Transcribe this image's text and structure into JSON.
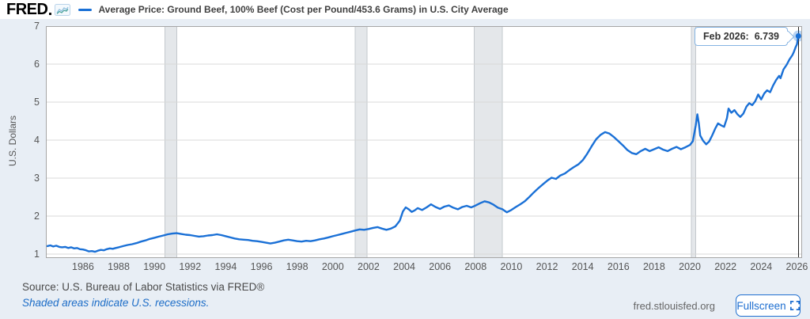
{
  "header": {
    "logo_text": "FRED",
    "series_title": "Average Price: Ground Beef, 100% Beef (Cost per Pound/453.6 Grams) in U.S. City Average"
  },
  "tooltip": {
    "label": "Feb 2026:",
    "value": "6.739"
  },
  "footer": {
    "source": "Source: U.S. Bureau of Labor Statistics via FRED®",
    "recession_note": "Shaded areas indicate U.S. recessions.",
    "site": "fred.stlouisfed.org",
    "fullscreen_label": "Fullscreen"
  },
  "colors": {
    "background": "#e8eef5",
    "line": "#1a70d6",
    "grid": "#d8d8d8",
    "plot_border": "#a6a6a6",
    "plot_bg": "#ffffff",
    "recession": "#e4e7ea",
    "recession_edge": "#c3c8cd",
    "crosshair": "#222222",
    "tooltip_border": "#85b3e2",
    "link": "#1b6cc7",
    "button": "#1f6fd0"
  },
  "chart_data": {
    "type": "line",
    "title": "Average Price: Ground Beef, 100% Beef (Cost per Pound/453.6 Grams) in U.S. City Average",
    "xlabel": "",
    "ylabel": "U.S. Dollars",
    "x_range": [
      1983.92,
      2026.29
    ],
    "y_range": [
      0.896,
      7.0
    ],
    "y_ticks": [
      1,
      2,
      3,
      4,
      5,
      6,
      7
    ],
    "x_ticks": [
      1986,
      1988,
      1990,
      1992,
      1994,
      1996,
      1998,
      2000,
      2002,
      2004,
      2006,
      2008,
      2010,
      2012,
      2014,
      2016,
      2018,
      2020,
      2022,
      2024,
      2026
    ],
    "grid": "horizontal",
    "legend_position": "top",
    "recessions": [
      [
        1990.58,
        1991.25
      ],
      [
        2001.25,
        2001.92
      ],
      [
        2007.92,
        2009.5
      ],
      [
        2020.08,
        2020.33
      ]
    ],
    "last_point": {
      "x": 2026.083,
      "y": 6.739,
      "label": "Feb 2026"
    },
    "series": [
      {
        "name": "Average Price: Ground Beef, 100% Beef (Cost per Pound/453.6 Grams) in U.S. City Average",
        "units": "U.S. Dollars",
        "points": [
          [
            1984.0,
            1.21
          ],
          [
            1984.17,
            1.23
          ],
          [
            1984.33,
            1.2
          ],
          [
            1984.5,
            1.22
          ],
          [
            1984.67,
            1.19
          ],
          [
            1984.83,
            1.18
          ],
          [
            1985.0,
            1.19
          ],
          [
            1985.17,
            1.16
          ],
          [
            1985.33,
            1.18
          ],
          [
            1985.5,
            1.15
          ],
          [
            1985.67,
            1.16
          ],
          [
            1985.83,
            1.13
          ],
          [
            1986.0,
            1.12
          ],
          [
            1986.17,
            1.1
          ],
          [
            1986.33,
            1.07
          ],
          [
            1986.5,
            1.08
          ],
          [
            1986.67,
            1.06
          ],
          [
            1986.83,
            1.09
          ],
          [
            1987.0,
            1.11
          ],
          [
            1987.17,
            1.1
          ],
          [
            1987.33,
            1.13
          ],
          [
            1987.5,
            1.15
          ],
          [
            1987.67,
            1.14
          ],
          [
            1987.83,
            1.16
          ],
          [
            1988.0,
            1.18
          ],
          [
            1988.25,
            1.21
          ],
          [
            1988.5,
            1.24
          ],
          [
            1988.75,
            1.26
          ],
          [
            1989.0,
            1.29
          ],
          [
            1989.25,
            1.33
          ],
          [
            1989.5,
            1.36
          ],
          [
            1989.75,
            1.4
          ],
          [
            1990.0,
            1.43
          ],
          [
            1990.25,
            1.46
          ],
          [
            1990.5,
            1.49
          ],
          [
            1990.75,
            1.52
          ],
          [
            1991.0,
            1.54
          ],
          [
            1991.25,
            1.55
          ],
          [
            1991.5,
            1.53
          ],
          [
            1991.75,
            1.51
          ],
          [
            1992.0,
            1.5
          ],
          [
            1992.25,
            1.48
          ],
          [
            1992.5,
            1.46
          ],
          [
            1992.75,
            1.47
          ],
          [
            1993.0,
            1.49
          ],
          [
            1993.25,
            1.5
          ],
          [
            1993.5,
            1.52
          ],
          [
            1993.75,
            1.5
          ],
          [
            1994.0,
            1.47
          ],
          [
            1994.25,
            1.44
          ],
          [
            1994.5,
            1.41
          ],
          [
            1994.75,
            1.39
          ],
          [
            1995.0,
            1.38
          ],
          [
            1995.25,
            1.37
          ],
          [
            1995.5,
            1.35
          ],
          [
            1995.75,
            1.34
          ],
          [
            1996.0,
            1.32
          ],
          [
            1996.25,
            1.3
          ],
          [
            1996.5,
            1.28
          ],
          [
            1996.75,
            1.3
          ],
          [
            1997.0,
            1.33
          ],
          [
            1997.25,
            1.36
          ],
          [
            1997.5,
            1.38
          ],
          [
            1997.75,
            1.36
          ],
          [
            1998.0,
            1.34
          ],
          [
            1998.25,
            1.33
          ],
          [
            1998.5,
            1.35
          ],
          [
            1998.75,
            1.34
          ],
          [
            1999.0,
            1.36
          ],
          [
            1999.25,
            1.39
          ],
          [
            1999.5,
            1.41
          ],
          [
            1999.75,
            1.44
          ],
          [
            2000.0,
            1.47
          ],
          [
            2000.25,
            1.5
          ],
          [
            2000.5,
            1.53
          ],
          [
            2000.75,
            1.56
          ],
          [
            2001.0,
            1.59
          ],
          [
            2001.25,
            1.62
          ],
          [
            2001.5,
            1.65
          ],
          [
            2001.75,
            1.64
          ],
          [
            2002.0,
            1.66
          ],
          [
            2002.25,
            1.69
          ],
          [
            2002.5,
            1.71
          ],
          [
            2002.75,
            1.67
          ],
          [
            2003.0,
            1.64
          ],
          [
            2003.25,
            1.67
          ],
          [
            2003.5,
            1.73
          ],
          [
            2003.75,
            1.88
          ],
          [
            2003.92,
            2.12
          ],
          [
            2004.08,
            2.23
          ],
          [
            2004.25,
            2.18
          ],
          [
            2004.42,
            2.11
          ],
          [
            2004.58,
            2.15
          ],
          [
            2004.75,
            2.21
          ],
          [
            2005.0,
            2.16
          ],
          [
            2005.25,
            2.23
          ],
          [
            2005.5,
            2.31
          ],
          [
            2005.75,
            2.24
          ],
          [
            2006.0,
            2.19
          ],
          [
            2006.25,
            2.25
          ],
          [
            2006.5,
            2.28
          ],
          [
            2006.75,
            2.22
          ],
          [
            2007.0,
            2.18
          ],
          [
            2007.25,
            2.24
          ],
          [
            2007.5,
            2.27
          ],
          [
            2007.75,
            2.23
          ],
          [
            2008.0,
            2.28
          ],
          [
            2008.25,
            2.34
          ],
          [
            2008.5,
            2.39
          ],
          [
            2008.75,
            2.36
          ],
          [
            2009.0,
            2.3
          ],
          [
            2009.25,
            2.22
          ],
          [
            2009.5,
            2.18
          ],
          [
            2009.75,
            2.1
          ],
          [
            2010.0,
            2.16
          ],
          [
            2010.25,
            2.24
          ],
          [
            2010.5,
            2.31
          ],
          [
            2010.75,
            2.39
          ],
          [
            2011.0,
            2.5
          ],
          [
            2011.25,
            2.62
          ],
          [
            2011.5,
            2.73
          ],
          [
            2011.75,
            2.83
          ],
          [
            2012.0,
            2.93
          ],
          [
            2012.25,
            3.01
          ],
          [
            2012.5,
            2.98
          ],
          [
            2012.75,
            3.07
          ],
          [
            2013.0,
            3.12
          ],
          [
            2013.25,
            3.21
          ],
          [
            2013.5,
            3.29
          ],
          [
            2013.75,
            3.36
          ],
          [
            2014.0,
            3.47
          ],
          [
            2014.25,
            3.64
          ],
          [
            2014.5,
            3.84
          ],
          [
            2014.75,
            4.02
          ],
          [
            2015.0,
            4.14
          ],
          [
            2015.25,
            4.21
          ],
          [
            2015.5,
            4.17
          ],
          [
            2015.75,
            4.08
          ],
          [
            2016.0,
            3.97
          ],
          [
            2016.25,
            3.86
          ],
          [
            2016.5,
            3.74
          ],
          [
            2016.75,
            3.66
          ],
          [
            2017.0,
            3.63
          ],
          [
            2017.25,
            3.71
          ],
          [
            2017.5,
            3.77
          ],
          [
            2017.75,
            3.71
          ],
          [
            2018.0,
            3.76
          ],
          [
            2018.25,
            3.81
          ],
          [
            2018.5,
            3.75
          ],
          [
            2018.75,
            3.71
          ],
          [
            2019.0,
            3.77
          ],
          [
            2019.25,
            3.82
          ],
          [
            2019.5,
            3.76
          ],
          [
            2019.75,
            3.81
          ],
          [
            2020.0,
            3.87
          ],
          [
            2020.17,
            3.97
          ],
          [
            2020.33,
            4.38
          ],
          [
            2020.42,
            4.68
          ],
          [
            2020.5,
            4.45
          ],
          [
            2020.58,
            4.12
          ],
          [
            2020.75,
            3.98
          ],
          [
            2020.92,
            3.89
          ],
          [
            2021.08,
            3.96
          ],
          [
            2021.25,
            4.12
          ],
          [
            2021.42,
            4.3
          ],
          [
            2021.58,
            4.44
          ],
          [
            2021.75,
            4.39
          ],
          [
            2021.92,
            4.35
          ],
          [
            2022.08,
            4.58
          ],
          [
            2022.17,
            4.83
          ],
          [
            2022.33,
            4.72
          ],
          [
            2022.5,
            4.79
          ],
          [
            2022.67,
            4.68
          ],
          [
            2022.83,
            4.61
          ],
          [
            2023.0,
            4.7
          ],
          [
            2023.17,
            4.88
          ],
          [
            2023.33,
            4.97
          ],
          [
            2023.5,
            4.92
          ],
          [
            2023.67,
            5.03
          ],
          [
            2023.83,
            5.2
          ],
          [
            2024.0,
            5.07
          ],
          [
            2024.17,
            5.23
          ],
          [
            2024.33,
            5.31
          ],
          [
            2024.5,
            5.26
          ],
          [
            2024.67,
            5.44
          ],
          [
            2024.83,
            5.58
          ],
          [
            2025.0,
            5.69
          ],
          [
            2025.08,
            5.63
          ],
          [
            2025.25,
            5.86
          ],
          [
            2025.42,
            5.98
          ],
          [
            2025.58,
            6.12
          ],
          [
            2025.75,
            6.24
          ],
          [
            2025.83,
            6.32
          ],
          [
            2025.92,
            6.44
          ],
          [
            2026.0,
            6.52
          ],
          [
            2026.083,
            6.739
          ]
        ]
      }
    ]
  }
}
